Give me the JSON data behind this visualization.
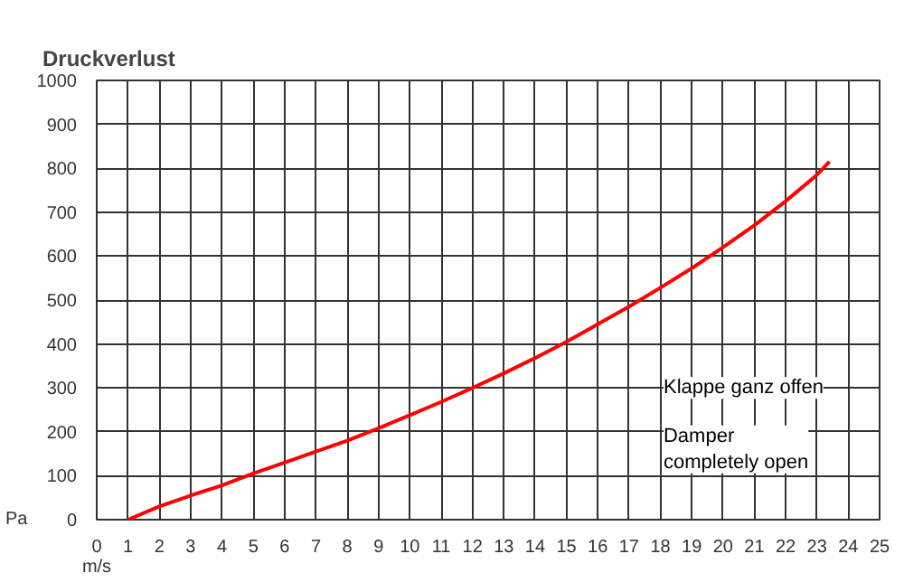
{
  "chart_data": {
    "type": "line",
    "title": "Druckverlust",
    "xlabel": "m/s",
    "ylabel": "Pa",
    "annotations": [
      "Klappe ganz offen",
      "Damper\ncompletely open"
    ],
    "series": [
      {
        "color": "#ff0000",
        "x": [
          1,
          2,
          3,
          4,
          5,
          6,
          7,
          8,
          9,
          10,
          11,
          12,
          13,
          14,
          15,
          16,
          17,
          18,
          19,
          20,
          21,
          22,
          23,
          23.4
        ],
        "values": [
          0,
          30,
          55,
          78,
          105,
          130,
          155,
          180,
          208,
          238,
          268,
          300,
          333,
          368,
          405,
          445,
          485,
          528,
          572,
          620,
          670,
          725,
          785,
          815
        ]
      }
    ],
    "xlim": [
      0,
      25
    ],
    "xticks": [
      0,
      1,
      2,
      3,
      4,
      5,
      6,
      7,
      8,
      9,
      10,
      11,
      12,
      13,
      14,
      15,
      16,
      17,
      18,
      19,
      20,
      21,
      22,
      23,
      24,
      25
    ],
    "ylim": [
      0,
      1000
    ],
    "yticks": [
      0,
      100,
      200,
      300,
      400,
      500,
      600,
      700,
      800,
      900,
      1000
    ],
    "grid": true,
    "marker": "none",
    "line_style": "solid"
  }
}
